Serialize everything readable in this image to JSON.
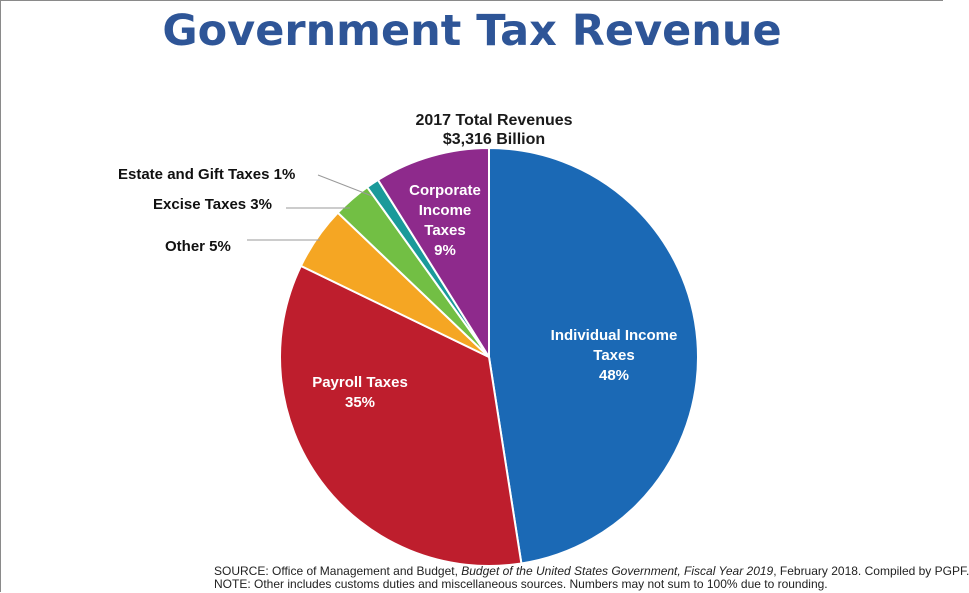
{
  "page": {
    "title": "Government Tax Revenue"
  },
  "chart_data": {
    "type": "pie",
    "subtitle_line1": "2017 Total Revenues",
    "subtitle_line2": "$3,316 Billion",
    "slices": [
      {
        "name": "Individual Income Taxes",
        "value": 48,
        "label_lines": [
          "Individual Income",
          "Taxes",
          "48%"
        ],
        "color": "#1b69b5",
        "label_placement": "inside"
      },
      {
        "name": "Payroll Taxes",
        "value": 35,
        "label_lines": [
          "Payroll Taxes",
          "35%"
        ],
        "color": "#be1e2d",
        "label_placement": "inside"
      },
      {
        "name": "Other",
        "value": 5,
        "label_lines": [
          "Other 5%"
        ],
        "color": "#f5a623",
        "label_placement": "outside"
      },
      {
        "name": "Excise Taxes",
        "value": 3,
        "label_lines": [
          "Excise Taxes 3%"
        ],
        "color": "#72bf44",
        "label_placement": "outside"
      },
      {
        "name": "Estate and Gift Taxes",
        "value": 1,
        "label_lines": [
          "Estate and Gift Taxes 1%"
        ],
        "color": "#1a9a9a",
        "label_placement": "outside"
      },
      {
        "name": "Corporate Income Taxes",
        "value": 9,
        "label_lines": [
          "Corporate",
          "Income",
          "Taxes",
          "9%"
        ],
        "color": "#8e2a8c",
        "label_placement": "inside"
      }
    ]
  },
  "footer": {
    "source_prefix": "SOURCE: Office of Management and Budget, ",
    "source_italic": "Budget of the United States Government, Fiscal Year 2019",
    "source_suffix": ", February 2018. Compiled by PGPF.",
    "note": "NOTE: Other includes customs duties and miscellaneous sources. Numbers may not sum to 100% due to rounding."
  }
}
